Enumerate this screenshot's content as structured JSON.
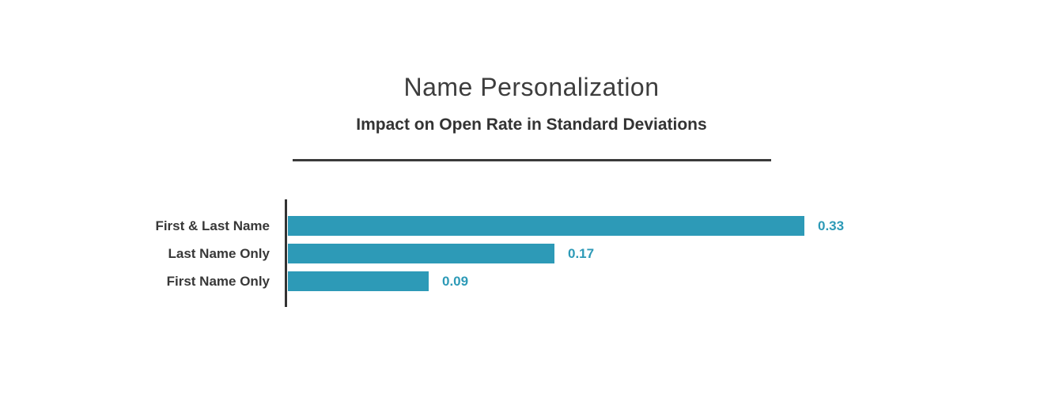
{
  "chart_data": {
    "type": "bar",
    "orientation": "horizontal",
    "title": "Name Personalization",
    "subtitle": "Impact on Open Rate in Standard Deviations",
    "categories": [
      "First & Last Name",
      "Last Name Only",
      "First Name Only"
    ],
    "values": [
      0.33,
      0.17,
      0.09
    ],
    "value_labels": [
      "0.33",
      "0.17",
      "0.09"
    ],
    "xlim": [
      0,
      0.34
    ],
    "grid": false,
    "legend": false,
    "bar_color": "#2d9ab7",
    "value_label_color": "#2d9ab7",
    "category_label_color": "#383838",
    "axis_color": "#333333",
    "title_color": "#3d3d3d"
  }
}
